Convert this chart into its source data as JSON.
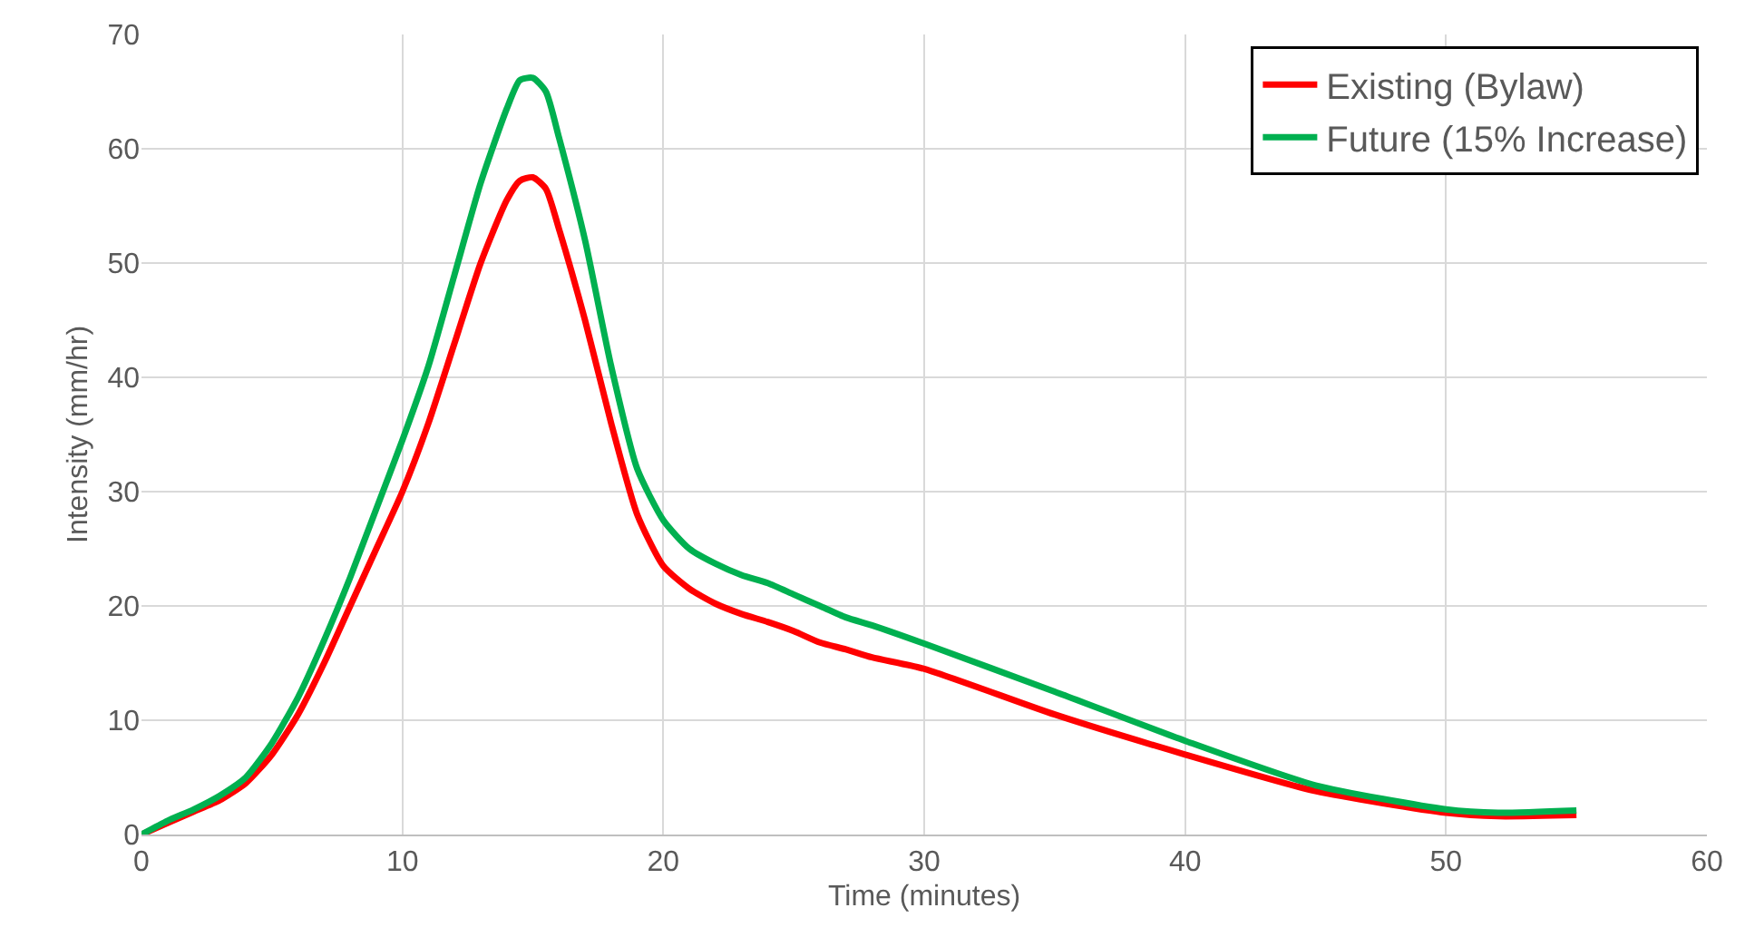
{
  "chart_data": {
    "type": "line",
    "xlabel": "Time (minutes)",
    "ylabel": "Intensity (mm/hr)",
    "xlim": [
      0,
      60
    ],
    "xticks": [
      0,
      10,
      20,
      30,
      40,
      50,
      60
    ],
    "ylim": [
      0,
      70
    ],
    "yticks": [
      0,
      10,
      20,
      30,
      40,
      50,
      60,
      70
    ],
    "grid": true,
    "legend": "top right",
    "marker": "none",
    "line_style": "solid",
    "series": [
      {
        "name": "Existing (Bylaw)",
        "color": "#ff0000",
        "x": [
          0,
          1,
          2,
          3,
          4,
          5,
          6,
          7,
          8,
          9,
          10,
          11,
          12,
          13,
          14,
          14.5,
          15,
          15.5,
          16,
          17,
          18,
          19,
          20,
          21,
          22,
          23,
          24,
          25,
          26,
          27,
          28,
          30,
          35,
          40,
          45,
          50,
          52,
          55
        ],
        "values": [
          0,
          1,
          2,
          3,
          4.5,
          7,
          10.5,
          15,
          20,
          25,
          30,
          36,
          43,
          50,
          55.5,
          57.2,
          57.5,
          56.5,
          53,
          45,
          36,
          28,
          23.5,
          21.5,
          20.2,
          19.3,
          18.6,
          17.8,
          16.8,
          16.2,
          15.5,
          14.5,
          10.5,
          7,
          3.8,
          1.9,
          1.6,
          1.7
        ]
      },
      {
        "name": "Future (15% Increase)",
        "color": "#00b050",
        "x": [
          0,
          1,
          2,
          3,
          4,
          5,
          6,
          7,
          8,
          9,
          10,
          11,
          12,
          13,
          14,
          14.5,
          15,
          15.5,
          16,
          17,
          18,
          19,
          20,
          21,
          22,
          23,
          24,
          25,
          26,
          27,
          28,
          30,
          35,
          40,
          45,
          50,
          52,
          55
        ],
        "values": [
          0,
          1.2,
          2.2,
          3.4,
          5,
          8,
          12,
          17,
          22.5,
          28.5,
          34.5,
          41,
          49,
          57,
          63.5,
          66,
          66.2,
          65,
          61,
          52,
          41,
          32,
          27.5,
          25,
          23.7,
          22.7,
          22,
          21,
          20,
          19,
          18.3,
          16.7,
          12.5,
          8.2,
          4.3,
          2.2,
          1.9,
          2.1
        ]
      }
    ]
  }
}
